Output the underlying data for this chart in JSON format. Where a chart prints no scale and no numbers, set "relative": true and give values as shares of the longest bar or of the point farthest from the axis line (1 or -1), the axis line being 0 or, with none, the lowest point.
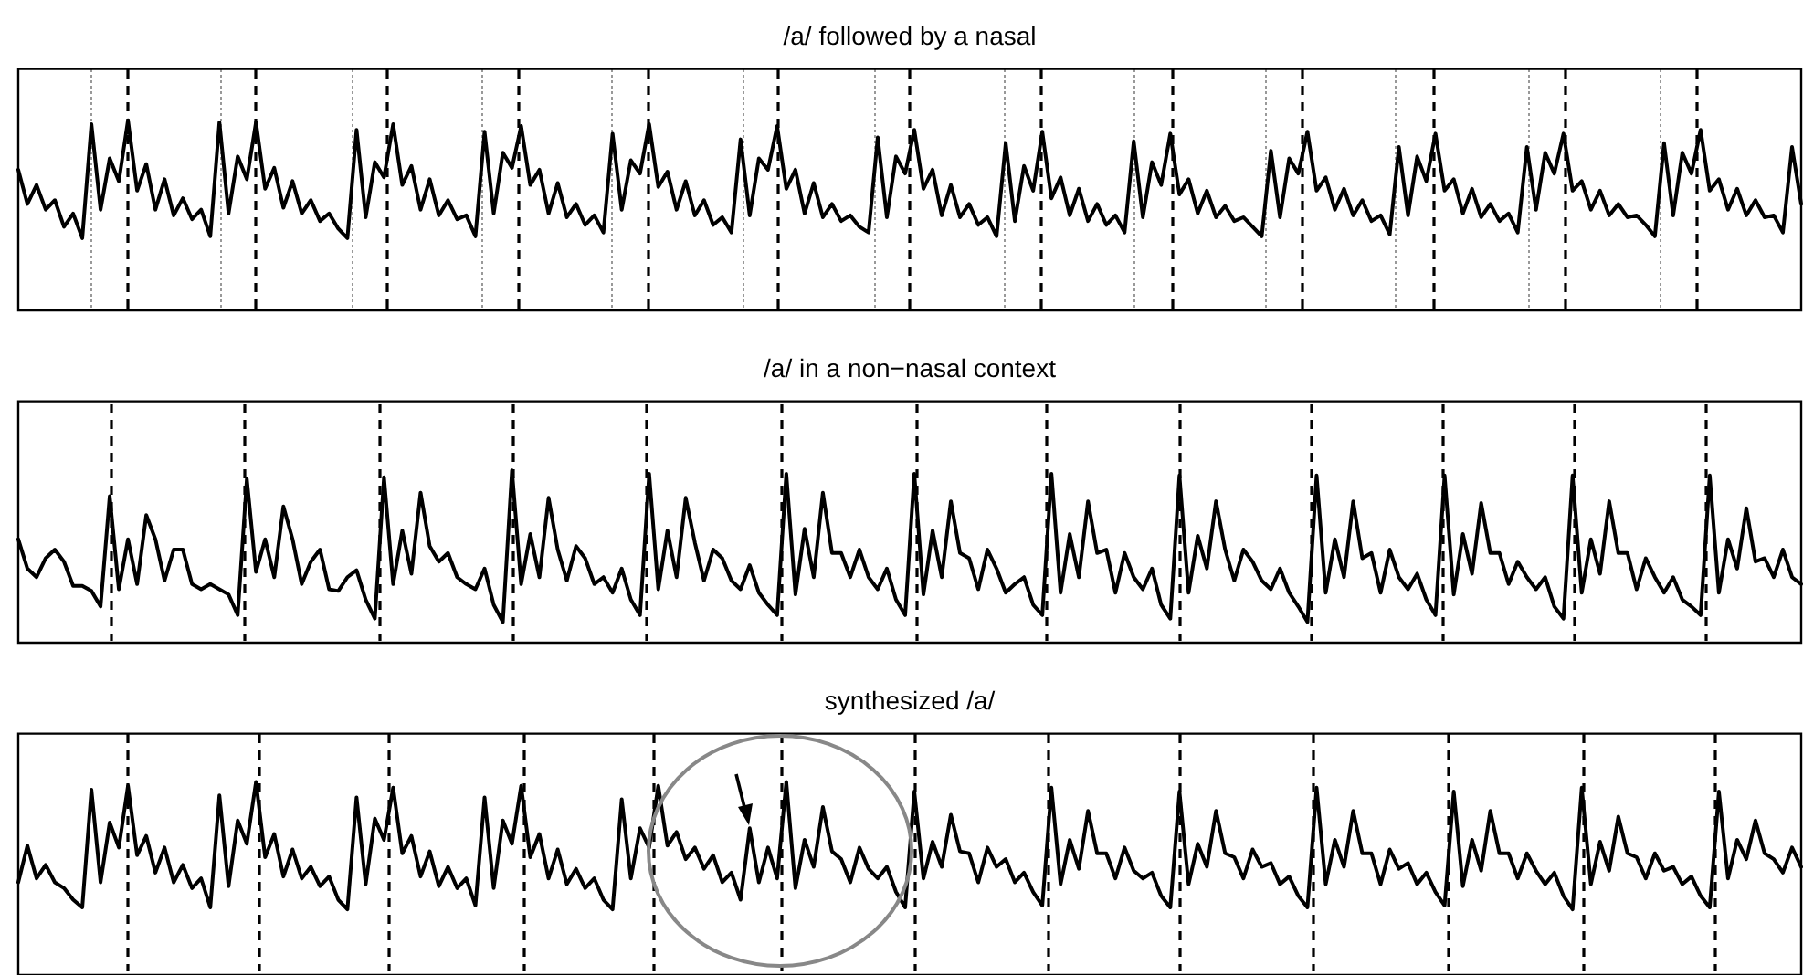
{
  "chart_data": [
    {
      "type": "line",
      "title": "/a/ followed by a nasal",
      "relative": true,
      "categories": [
        null,
        null,
        null,
        null,
        null,
        null,
        null,
        null,
        null,
        null,
        null,
        null,
        null,
        null,
        null,
        null,
        null,
        null,
        null,
        null,
        null,
        null,
        null,
        null,
        null,
        null,
        null,
        null,
        null,
        null,
        null,
        null,
        null,
        null,
        null,
        null,
        null,
        null,
        null,
        null,
        null,
        null,
        null,
        null,
        null,
        null,
        null,
        null,
        null,
        null,
        null,
        null,
        null,
        null,
        null,
        null,
        null,
        null,
        null,
        null,
        null,
        null,
        null,
        null,
        null,
        null,
        null,
        null,
        null,
        null,
        null,
        null,
        null,
        null,
        null,
        null,
        null,
        null,
        null,
        null,
        null,
        null,
        null,
        null,
        null,
        null,
        null,
        null,
        null,
        null,
        null,
        null,
        null,
        null,
        null,
        null,
        null,
        null,
        null,
        null,
        null,
        null,
        null,
        null,
        null,
        null,
        null,
        null,
        null,
        null,
        null,
        null,
        null,
        null,
        null,
        null,
        null,
        null,
        null,
        null,
        null,
        null,
        null,
        null,
        null,
        null,
        null,
        null,
        null,
        null,
        null,
        null,
        null,
        null,
        null,
        null,
        null,
        null,
        null,
        null,
        null,
        null,
        null,
        null,
        null,
        null,
        null,
        null,
        null,
        null,
        null,
        null,
        null,
        null,
        null,
        null,
        null,
        null,
        null,
        null,
        null,
        null,
        null,
        null,
        null,
        null,
        null,
        null,
        null,
        null,
        null,
        null,
        null,
        null,
        null,
        null,
        null,
        null,
        null,
        null,
        null,
        null,
        null,
        null,
        null,
        null,
        null,
        null,
        null,
        null,
        null,
        null,
        null,
        null,
        null,
        null
      ],
      "series": [
        {
          "color": "#000000",
          "values": [
            0.74,
            0.56,
            0.66,
            0.53,
            0.58,
            0.44,
            0.51,
            0.38,
            0.98,
            0.53,
            0.8,
            0.68,
            1.0,
            0.63,
            0.77,
            0.53,
            0.69,
            0.5,
            0.59,
            0.48,
            0.53,
            0.39,
            0.99,
            0.51,
            0.81,
            0.69,
            0.99,
            0.64,
            0.75,
            0.54,
            0.68,
            0.51,
            0.58,
            0.47,
            0.51,
            0.43,
            0.38,
            0.95,
            0.49,
            0.78,
            0.7,
            0.98,
            0.66,
            0.76,
            0.53,
            0.69,
            0.5,
            0.58,
            0.48,
            0.5,
            0.39,
            0.94,
            0.51,
            0.83,
            0.75,
            0.97,
            0.66,
            0.74,
            0.51,
            0.67,
            0.49,
            0.56,
            0.45,
            0.5,
            0.41,
            0.93,
            0.53,
            0.79,
            0.72,
            0.98,
            0.65,
            0.73,
            0.53,
            0.68,
            0.5,
            0.58,
            0.45,
            0.49,
            0.41,
            0.9,
            0.5,
            0.8,
            0.74,
            0.97,
            0.64,
            0.74,
            0.51,
            0.67,
            0.49,
            0.56,
            0.47,
            0.5,
            0.44,
            0.41,
            0.91,
            0.49,
            0.81,
            0.72,
            0.95,
            0.64,
            0.74,
            0.5,
            0.66,
            0.49,
            0.56,
            0.45,
            0.49,
            0.39,
            0.88,
            0.47,
            0.76,
            0.63,
            0.94,
            0.59,
            0.7,
            0.5,
            0.64,
            0.47,
            0.56,
            0.45,
            0.5,
            0.41,
            0.89,
            0.49,
            0.78,
            0.66,
            0.93,
            0.61,
            0.69,
            0.51,
            0.63,
            0.49,
            0.55,
            0.47,
            0.49,
            0.44,
            0.39,
            0.84,
            0.49,
            0.8,
            0.72,
            0.94,
            0.63,
            0.7,
            0.53,
            0.64,
            0.5,
            0.58,
            0.47,
            0.5,
            0.4,
            0.86,
            0.5,
            0.81,
            0.68,
            0.93,
            0.63,
            0.69,
            0.51,
            0.64,
            0.49,
            0.56,
            0.47,
            0.51,
            0.41,
            0.86,
            0.53,
            0.83,
            0.72,
            0.93,
            0.63,
            0.68,
            0.53,
            0.63,
            0.5,
            0.56,
            0.49,
            0.5,
            0.45,
            0.39,
            0.88,
            0.5,
            0.83,
            0.72,
            0.95,
            0.63,
            0.69,
            0.53,
            0.64,
            0.5,
            0.58,
            0.49,
            0.5,
            0.41,
            0.86,
            0.56
          ]
        }
      ]
    },
    {
      "type": "line",
      "title": "/a/ in a non−nasal context",
      "relative": true,
      "categories": [
        null,
        null,
        null,
        null,
        null,
        null,
        null,
        null,
        null,
        null,
        null,
        null,
        null,
        null,
        null,
        null,
        null,
        null,
        null,
        null,
        null,
        null,
        null,
        null,
        null,
        null,
        null,
        null,
        null,
        null,
        null,
        null,
        null,
        null,
        null,
        null,
        null,
        null,
        null,
        null,
        null,
        null,
        null,
        null,
        null,
        null,
        null,
        null,
        null,
        null,
        null,
        null,
        null,
        null,
        null,
        null,
        null,
        null,
        null,
        null,
        null,
        null,
        null,
        null,
        null,
        null,
        null,
        null,
        null,
        null,
        null,
        null,
        null,
        null,
        null,
        null,
        null,
        null,
        null,
        null,
        null,
        null,
        null,
        null,
        null,
        null,
        null,
        null,
        null,
        null,
        null,
        null,
        null,
        null,
        null,
        null,
        null,
        null,
        null,
        null,
        null,
        null,
        null,
        null,
        null,
        null,
        null,
        null,
        null,
        null,
        null,
        null,
        null,
        null,
        null,
        null,
        null,
        null,
        null,
        null,
        null,
        null,
        null,
        null,
        null,
        null,
        null,
        null,
        null,
        null,
        null,
        null,
        null,
        null,
        null,
        null,
        null,
        null,
        null,
        null,
        null,
        null,
        null,
        null,
        null,
        null,
        null,
        null,
        null,
        null,
        null,
        null,
        null,
        null,
        null,
        null,
        null,
        null,
        null,
        null,
        null,
        null,
        null,
        null,
        null,
        null,
        null,
        null,
        null,
        null,
        null,
        null,
        null,
        null,
        null,
        null,
        null,
        null,
        null,
        null,
        null,
        null,
        null,
        null,
        null,
        null,
        null,
        null,
        null,
        null,
        null,
        null,
        null,
        null,
        null,
        null
      ],
      "series": [
        {
          "color": "#000000",
          "values": [
            0.6,
            0.43,
            0.38,
            0.49,
            0.54,
            0.47,
            0.33,
            0.33,
            0.3,
            0.21,
            0.85,
            0.31,
            0.6,
            0.34,
            0.74,
            0.6,
            0.36,
            0.54,
            0.54,
            0.34,
            0.31,
            0.34,
            0.31,
            0.28,
            0.16,
            0.95,
            0.41,
            0.6,
            0.38,
            0.79,
            0.6,
            0.34,
            0.47,
            0.54,
            0.31,
            0.3,
            0.38,
            0.42,
            0.25,
            0.14,
            0.96,
            0.34,
            0.65,
            0.4,
            0.87,
            0.56,
            0.47,
            0.52,
            0.38,
            0.34,
            0.31,
            0.43,
            0.22,
            0.12,
            1.0,
            0.34,
            0.63,
            0.38,
            0.84,
            0.54,
            0.36,
            0.56,
            0.49,
            0.34,
            0.38,
            0.29,
            0.43,
            0.25,
            0.16,
            0.98,
            0.31,
            0.65,
            0.38,
            0.84,
            0.58,
            0.36,
            0.54,
            0.49,
            0.36,
            0.31,
            0.45,
            0.29,
            0.22,
            0.16,
            0.98,
            0.28,
            0.66,
            0.38,
            0.87,
            0.52,
            0.52,
            0.38,
            0.54,
            0.38,
            0.31,
            0.43,
            0.25,
            0.16,
            0.98,
            0.28,
            0.65,
            0.38,
            0.82,
            0.52,
            0.49,
            0.31,
            0.54,
            0.43,
            0.29,
            0.34,
            0.38,
            0.22,
            0.16,
            0.98,
            0.29,
            0.63,
            0.38,
            0.82,
            0.52,
            0.54,
            0.29,
            0.52,
            0.38,
            0.31,
            0.43,
            0.22,
            0.14,
            0.97,
            0.29,
            0.62,
            0.43,
            0.82,
            0.54,
            0.36,
            0.54,
            0.47,
            0.36,
            0.31,
            0.43,
            0.29,
            0.21,
            0.12,
            0.97,
            0.29,
            0.6,
            0.38,
            0.82,
            0.49,
            0.52,
            0.29,
            0.54,
            0.38,
            0.31,
            0.4,
            0.25,
            0.16,
            0.97,
            0.28,
            0.63,
            0.4,
            0.81,
            0.52,
            0.52,
            0.34,
            0.47,
            0.38,
            0.31,
            0.38,
            0.21,
            0.14,
            0.97,
            0.29,
            0.6,
            0.4,
            0.82,
            0.52,
            0.52,
            0.31,
            0.49,
            0.38,
            0.29,
            0.38,
            0.25,
            0.21,
            0.16,
            0.97,
            0.29,
            0.6,
            0.43,
            0.78,
            0.47,
            0.49,
            0.38,
            0.54,
            0.38,
            0.34
          ]
        }
      ]
    },
    {
      "type": "line",
      "title": "synthesized /a/",
      "relative": true,
      "categories": [
        null,
        null,
        null,
        null,
        null,
        null,
        null,
        null,
        null,
        null,
        null,
        null,
        null,
        null,
        null,
        null,
        null,
        null,
        null,
        null,
        null,
        null,
        null,
        null,
        null,
        null,
        null,
        null,
        null,
        null,
        null,
        null,
        null,
        null,
        null,
        null,
        null,
        null,
        null,
        null,
        null,
        null,
        null,
        null,
        null,
        null,
        null,
        null,
        null,
        null,
        null,
        null,
        null,
        null,
        null,
        null,
        null,
        null,
        null,
        null,
        null,
        null,
        null,
        null,
        null,
        null,
        null,
        null,
        null,
        null,
        null,
        null,
        null,
        null,
        null,
        null,
        null,
        null,
        null,
        null,
        null,
        null,
        null,
        null,
        null,
        null,
        null,
        null,
        null,
        null,
        null,
        null,
        null,
        null,
        null,
        null,
        null,
        null,
        null,
        null,
        null,
        null,
        null,
        null,
        null,
        null,
        null,
        null,
        null,
        null,
        null,
        null,
        null,
        null,
        null,
        null,
        null,
        null,
        null,
        null,
        null,
        null,
        null,
        null,
        null,
        null,
        null,
        null,
        null,
        null,
        null,
        null,
        null,
        null,
        null,
        null,
        null,
        null,
        null,
        null,
        null,
        null,
        null,
        null,
        null,
        null,
        null,
        null,
        null,
        null,
        null,
        null,
        null,
        null,
        null,
        null,
        null,
        null,
        null,
        null,
        null,
        null,
        null,
        null,
        null,
        null,
        null,
        null,
        null,
        null,
        null,
        null,
        null,
        null,
        null,
        null,
        null,
        null,
        null,
        null,
        null,
        null,
        null,
        null,
        null,
        null,
        null,
        null,
        null,
        null,
        null,
        null,
        null,
        null,
        null,
        null
      ],
      "series": [
        {
          "color": "#000000",
          "values": [
            0.48,
            0.67,
            0.5,
            0.57,
            0.48,
            0.45,
            0.39,
            0.35,
            0.96,
            0.48,
            0.79,
            0.66,
            0.98,
            0.62,
            0.72,
            0.53,
            0.66,
            0.48,
            0.57,
            0.45,
            0.5,
            0.35,
            0.93,
            0.46,
            0.8,
            0.68,
            1.0,
            0.61,
            0.73,
            0.51,
            0.65,
            0.5,
            0.56,
            0.46,
            0.51,
            0.39,
            0.34,
            0.92,
            0.47,
            0.81,
            0.7,
            0.97,
            0.63,
            0.72,
            0.51,
            0.64,
            0.46,
            0.56,
            0.45,
            0.5,
            0.36,
            0.92,
            0.45,
            0.8,
            0.68,
            0.98,
            0.61,
            0.73,
            0.5,
            0.65,
            0.47,
            0.55,
            0.45,
            0.5,
            0.39,
            0.34,
            0.91,
            0.5,
            0.76,
            0.66,
            0.98,
            0.67,
            0.74,
            0.6,
            0.66,
            0.55,
            0.62,
            0.48,
            0.53,
            0.39,
            0.76,
            0.48,
            0.66,
            0.5,
            1.0,
            0.45,
            0.7,
            0.56,
            0.87,
            0.64,
            0.6,
            0.48,
            0.66,
            0.55,
            0.5,
            0.56,
            0.43,
            0.35,
            0.95,
            0.5,
            0.69,
            0.56,
            0.83,
            0.64,
            0.63,
            0.48,
            0.66,
            0.56,
            0.6,
            0.48,
            0.53,
            0.43,
            0.36,
            0.97,
            0.47,
            0.7,
            0.55,
            0.85,
            0.63,
            0.63,
            0.5,
            0.66,
            0.54,
            0.5,
            0.53,
            0.41,
            0.35,
            0.95,
            0.47,
            0.68,
            0.56,
            0.85,
            0.63,
            0.61,
            0.5,
            0.65,
            0.56,
            0.58,
            0.47,
            0.51,
            0.41,
            0.35,
            0.97,
            0.47,
            0.7,
            0.56,
            0.85,
            0.63,
            0.63,
            0.47,
            0.65,
            0.55,
            0.58,
            0.47,
            0.53,
            0.43,
            0.36,
            0.95,
            0.46,
            0.7,
            0.54,
            0.85,
            0.63,
            0.63,
            0.5,
            0.63,
            0.54,
            0.47,
            0.53,
            0.41,
            0.34,
            0.97,
            0.47,
            0.69,
            0.54,
            0.82,
            0.63,
            0.61,
            0.5,
            0.63,
            0.54,
            0.56,
            0.47,
            0.51,
            0.41,
            0.35,
            0.95,
            0.5,
            0.7,
            0.6,
            0.8,
            0.63,
            0.6,
            0.53,
            0.66,
            0.56
          ]
        }
      ]
    }
  ]
}
